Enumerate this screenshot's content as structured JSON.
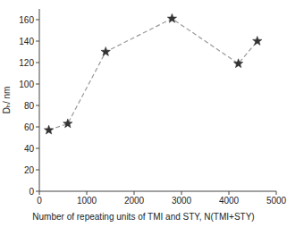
{
  "chart_data": {
    "type": "line",
    "x": [
      200,
      600,
      1400,
      2800,
      4200,
      4600
    ],
    "values": [
      57,
      63,
      130,
      161,
      119,
      140
    ],
    "xlabel": "Number of repeating units of TMI and STY, N(TMI+STY)",
    "ylabel": "Dₕ/ nm",
    "xlim": [
      0,
      5000
    ],
    "ylim": [
      0,
      170
    ],
    "xticks": [
      0,
      1000,
      2000,
      3000,
      4000,
      5000
    ],
    "yticks": [
      0,
      20,
      40,
      60,
      80,
      100,
      120,
      140,
      160
    ],
    "color": "#333333",
    "marker": "star",
    "line_style": "dashed",
    "grid": false
  }
}
